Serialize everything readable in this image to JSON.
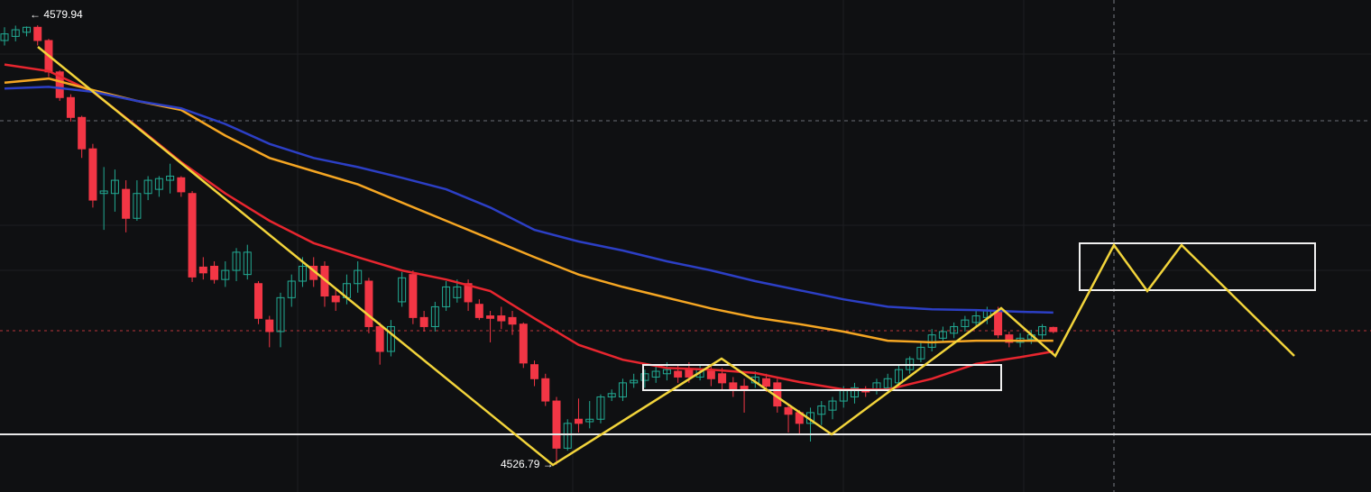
{
  "chart_data": {
    "type": "candlestick",
    "ylim": [
      4523.5,
      4583
    ],
    "up_color": "#22ab94",
    "down_color": "#f23645",
    "open": [
      4578.1,
      4578.6,
      4579.1,
      4579.7,
      4578.1,
      4574.3,
      4571.2,
      4568.8,
      4565.0,
      4559.6,
      4559.6,
      4560.1,
      4556.6,
      4559.6,
      4560.1,
      4561.2,
      4561.5,
      4559.6,
      4550.7,
      4550.8,
      4549.2,
      4550.3,
      4549.8,
      4548.7,
      4544.3,
      4542.9,
      4547.0,
      4549.0,
      4550.8,
      4550.8,
      4547.2,
      4547.0,
      4548.7,
      4549.0,
      4543.5,
      4540.5,
      4546.5,
      4549.8,
      4544.6,
      4543.5,
      4545.9,
      4547.0,
      4548.7,
      4546.2,
      4544.8,
      4544.8,
      4544.6,
      4543.8,
      4538.9,
      4537.2,
      4534.5,
      4528.8,
      4532.3,
      4532.0,
      4532.3,
      4535.0,
      4535.0,
      4536.7,
      4537.0,
      4537.4,
      4537.8,
      4538.1,
      4538.3,
      4537.4,
      4538.1,
      4537.8,
      4536.7,
      4536.3,
      4536.7,
      4537.2,
      4536.7,
      4533.7,
      4533.1,
      4531.8,
      4532.9,
      4533.4,
      4534.5,
      4535.0,
      4535.9,
      4535.9,
      4536.1,
      4536.7,
      4538.3,
      4539.6,
      4541.0,
      4542.1,
      4542.7,
      4543.5,
      4544.0,
      4544.6,
      4545.4,
      4542.5,
      4541.6,
      4542.0,
      4542.5,
      4543.4
    ],
    "high": [
      4579.7,
      4579.9,
      4579.8,
      4579.94,
      4578.3,
      4574.5,
      4571.6,
      4569.0,
      4565.6,
      4562.8,
      4562.5,
      4561.2,
      4561.2,
      4561.7,
      4561.7,
      4563.2,
      4561.7,
      4559.9,
      4551.9,
      4551.4,
      4551.4,
      4553.0,
      4553.4,
      4549.0,
      4544.8,
      4547.6,
      4549.8,
      4551.9,
      4551.9,
      4551.4,
      4548.1,
      4549.8,
      4551.4,
      4549.4,
      4544.0,
      4544.3,
      4550.1,
      4550.3,
      4545.4,
      4546.5,
      4549.0,
      4549.2,
      4549.2,
      4546.8,
      4545.4,
      4545.9,
      4545.4,
      4544.0,
      4539.4,
      4537.8,
      4535.0,
      4532.3,
      4534.8,
      4534.5,
      4535.3,
      4535.9,
      4537.2,
      4537.8,
      4538.3,
      4538.9,
      4539.2,
      4538.9,
      4539.2,
      4538.9,
      4538.9,
      4538.5,
      4537.4,
      4537.2,
      4538.1,
      4537.8,
      4537.2,
      4534.2,
      4533.4,
      4533.7,
      4534.5,
      4535.0,
      4536.3,
      4536.7,
      4536.3,
      4537.2,
      4537.8,
      4538.9,
      4539.9,
      4541.6,
      4543.2,
      4543.5,
      4544.0,
      4544.8,
      4545.4,
      4545.9,
      4545.9,
      4542.9,
      4542.7,
      4543.1,
      4543.8,
      4543.5
    ],
    "low": [
      4577.5,
      4578.0,
      4578.6,
      4577.5,
      4573.7,
      4570.8,
      4568.3,
      4563.9,
      4557.9,
      4555.2,
      4557.4,
      4554.9,
      4556.3,
      4558.8,
      4559.2,
      4559.6,
      4559.2,
      4548.9,
      4549.2,
      4548.7,
      4548.3,
      4549.0,
      4549.2,
      4543.8,
      4541.0,
      4541.0,
      4545.9,
      4548.3,
      4548.3,
      4545.9,
      4545.4,
      4546.2,
      4547.6,
      4542.7,
      4538.9,
      4539.9,
      4545.9,
      4543.8,
      4542.9,
      4542.9,
      4545.4,
      4546.4,
      4545.4,
      4544.3,
      4541.6,
      4543.2,
      4542.5,
      4538.5,
      4536.3,
      4533.9,
      4526.79,
      4528.5,
      4530.7,
      4531.2,
      4531.8,
      4534.5,
      4534.5,
      4536.1,
      4536.1,
      4536.7,
      4537.0,
      4536.7,
      4536.7,
      4537.0,
      4536.3,
      4535.9,
      4535.0,
      4533.1,
      4536.1,
      4535.6,
      4533.1,
      4530.7,
      4530.5,
      4529.6,
      4531.6,
      4532.3,
      4533.7,
      4534.2,
      4535.0,
      4535.3,
      4535.6,
      4536.1,
      4537.8,
      4539.2,
      4540.5,
      4541.6,
      4542.1,
      4542.9,
      4543.5,
      4543.8,
      4542.1,
      4541.0,
      4541.0,
      4541.4,
      4542.0,
      4542.7
    ],
    "close": [
      4578.9,
      4579.4,
      4579.7,
      4578.1,
      4574.3,
      4571.2,
      4568.8,
      4565.0,
      4558.8,
      4559.9,
      4561.2,
      4556.6,
      4559.6,
      4561.2,
      4561.4,
      4561.7,
      4559.8,
      4549.5,
      4550.0,
      4549.2,
      4550.3,
      4552.5,
      4552.5,
      4544.5,
      4542.9,
      4547.0,
      4549.0,
      4550.8,
      4549.2,
      4547.2,
      4546.5,
      4548.7,
      4550.3,
      4543.5,
      4540.5,
      4543.5,
      4549.4,
      4544.6,
      4543.5,
      4545.9,
      4548.3,
      4548.3,
      4546.5,
      4544.6,
      4544.5,
      4544.2,
      4543.8,
      4539.1,
      4537.2,
      4534.5,
      4528.8,
      4531.8,
      4531.8,
      4532.3,
      4535.0,
      4535.4,
      4536.7,
      4537.0,
      4537.8,
      4538.1,
      4538.3,
      4537.4,
      4537.4,
      4538.3,
      4537.2,
      4536.7,
      4535.9,
      4535.9,
      4537.4,
      4536.3,
      4533.9,
      4532.9,
      4531.8,
      4533.1,
      4533.9,
      4534.5,
      4535.9,
      4536.1,
      4535.6,
      4536.7,
      4537.2,
      4538.3,
      4539.6,
      4541.0,
      4542.5,
      4542.9,
      4543.5,
      4544.3,
      4544.8,
      4545.4,
      4542.5,
      4541.6,
      4542.1,
      4542.5,
      4543.5,
      4542.9
    ],
    "series": [
      {
        "color": "#e8262f",
        "x": [
          0,
          4,
          8,
          12,
          16,
          20,
          24,
          28,
          32,
          36,
          40,
          44,
          48,
          52,
          56,
          60,
          64,
          68,
          72,
          76,
          80,
          84,
          88,
          92,
          95
        ],
        "values": [
          4575.2,
          4574.4,
          4571.9,
          4567.7,
          4563.4,
          4559.6,
          4556.3,
          4553.6,
          4551.9,
          4550.3,
          4549.2,
          4547.8,
          4544.5,
          4541.3,
          4539.5,
          4538.5,
          4538.3,
          4537.9,
          4536.8,
          4535.9,
          4535.9,
          4537.2,
          4539.0,
          4539.8,
          4540.5
        ]
      },
      {
        "color": "#f5a623",
        "x": [
          0,
          4,
          8,
          12,
          16,
          20,
          24,
          28,
          32,
          36,
          40,
          44,
          48,
          52,
          56,
          60,
          64,
          68,
          72,
          76,
          80,
          84,
          88,
          92,
          95
        ],
        "values": [
          4573.0,
          4573.5,
          4572.1,
          4570.8,
          4569.7,
          4566.6,
          4563.9,
          4562.3,
          4560.7,
          4558.5,
          4556.3,
          4554.1,
          4551.9,
          4549.8,
          4548.3,
          4547.0,
          4545.7,
          4544.6,
          4543.8,
          4542.9,
          4541.8,
          4541.6,
          4541.8,
          4541.8,
          4541.8
        ]
      },
      {
        "color": "#2c3fc5",
        "x": [
          0,
          4,
          8,
          12,
          16,
          20,
          24,
          28,
          32,
          36,
          40,
          44,
          48,
          52,
          56,
          60,
          64,
          68,
          72,
          76,
          80,
          84,
          88,
          92,
          95
        ],
        "values": [
          4572.3,
          4572.5,
          4571.9,
          4570.8,
          4569.9,
          4568.0,
          4565.6,
          4563.9,
          4562.8,
          4561.5,
          4560.1,
          4557.9,
          4555.2,
          4553.8,
          4552.7,
          4551.4,
          4550.3,
          4549.0,
          4547.9,
          4546.8,
          4545.9,
          4545.6,
          4545.5,
          4545.3,
          4545.2
        ]
      }
    ],
    "annotations": [
      {
        "text": "← 4579.94"
      },
      {
        "text": "4526.79 →"
      }
    ]
  }
}
